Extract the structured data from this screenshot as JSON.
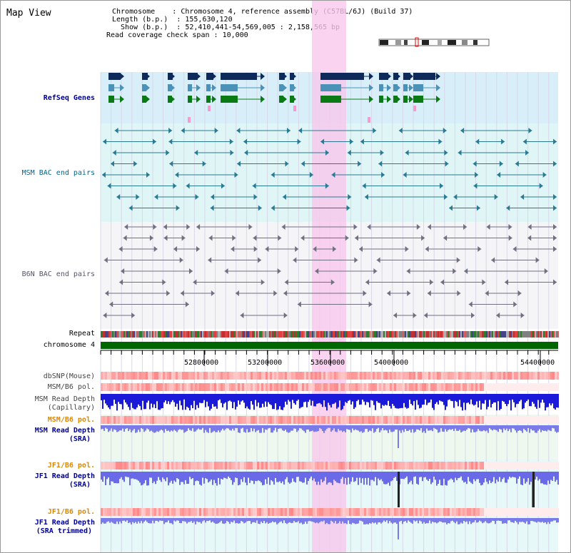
{
  "title": "Map View",
  "info": {
    "chromosome_label": "Chromosome",
    "chromosome_value": "Chromosome 4, reference assembly (C57BL/6J) (Build 37)",
    "length_label": "Length (b.p.)",
    "length_value": "155,630,120",
    "show_label": "Show (b.p.)",
    "show_value": "52,410,441-54,569,005 : 2,158,565 bp",
    "span_label": "Read coverage check span",
    "span_value": "10,000"
  },
  "tracks": {
    "refseq": "RefSeq Genes",
    "msm_bac": "MSM BAC end pairs",
    "b6n_bac": "B6N BAC end pairs",
    "repeat": "Repeat",
    "chromosome": "chromosome 4",
    "dbsnp": "dbSNP(Mouse)",
    "msm_b6_pol_1": "MSM/B6 pol.",
    "msm_depth_cap_1": "MSM Read Depth",
    "msm_depth_cap_2": "(Capillary)",
    "msm_b6_pol_2": "MSM/B6 pol.",
    "msm_depth_sra_1": "MSM Read Depth",
    "msm_depth_sra_2": "(SRA)",
    "jf1_b6_pol_1": "JF1/B6 pol.",
    "jf1_depth_1": "JF1 Read Depth",
    "jf1_depth_2": "(SRA)",
    "jf1_b6_pol_2": "JF1/B6 pol.",
    "jf1_trim_1": "JF1 Read Depth",
    "jf1_trim_2": "(SRA trimmed)"
  },
  "axis": {
    "ticks": [
      "52800000",
      "53200000",
      "53600000",
      "54000000",
      "54400000"
    ]
  },
  "colors": {
    "refseq_bg": "#d8eef8",
    "bac_bg": "#e0f6f6",
    "b6n_bg": "#f5f5f8",
    "highlight": "#f8c8ec",
    "chromosome": "#006600",
    "refseq_label": "#000099",
    "msm_label": "#006688",
    "b6n_label": "#555566",
    "pol_label": "#dd8800",
    "depth_label": "#000099"
  }
}
